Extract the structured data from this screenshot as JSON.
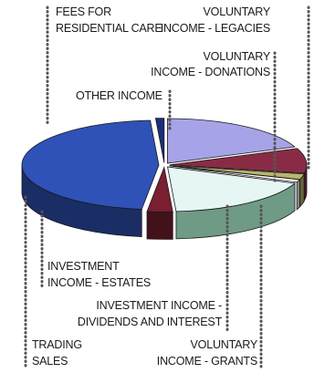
{
  "chart_data": {
    "type": "pie",
    "style": "3d-exploded",
    "title": "",
    "legend": "none",
    "series": [
      {
        "name": "",
        "slices": [
          {
            "label": [
              "VOLUNTARY",
              "INCOME - LEGACIES"
            ],
            "value": 19,
            "color": "#a7a3e8"
          },
          {
            "label": [
              "VOLUNTARY",
              "INCOME - DONATIONS"
            ],
            "value": 9,
            "color": "#8a2b45"
          },
          {
            "label": [
              "VOLUNTARY",
              "INCOME - GRANTS"
            ],
            "value": 2,
            "color": "#b9b56b"
          },
          {
            "label": [
              "INVESTMENT INCOME -",
              "DIVIDENDS AND INTEREST"
            ],
            "value": 1,
            "color": "#ffffff"
          },
          {
            "label": [
              "INVESTMENT",
              "INCOME - ESTATES"
            ],
            "value": 18,
            "color": "#e6f6f4"
          },
          {
            "label": [
              "TRADING",
              "SALES"
            ],
            "value": 3,
            "color": "#7a1e32"
          },
          {
            "label": [
              "FEES FOR",
              "RESIDENTIAL CARE"
            ],
            "value": 47,
            "color": "#2f52b8"
          },
          {
            "label": [
              "OTHER INCOME"
            ],
            "value": 1,
            "color": "#1a2f7a"
          }
        ]
      }
    ]
  }
}
